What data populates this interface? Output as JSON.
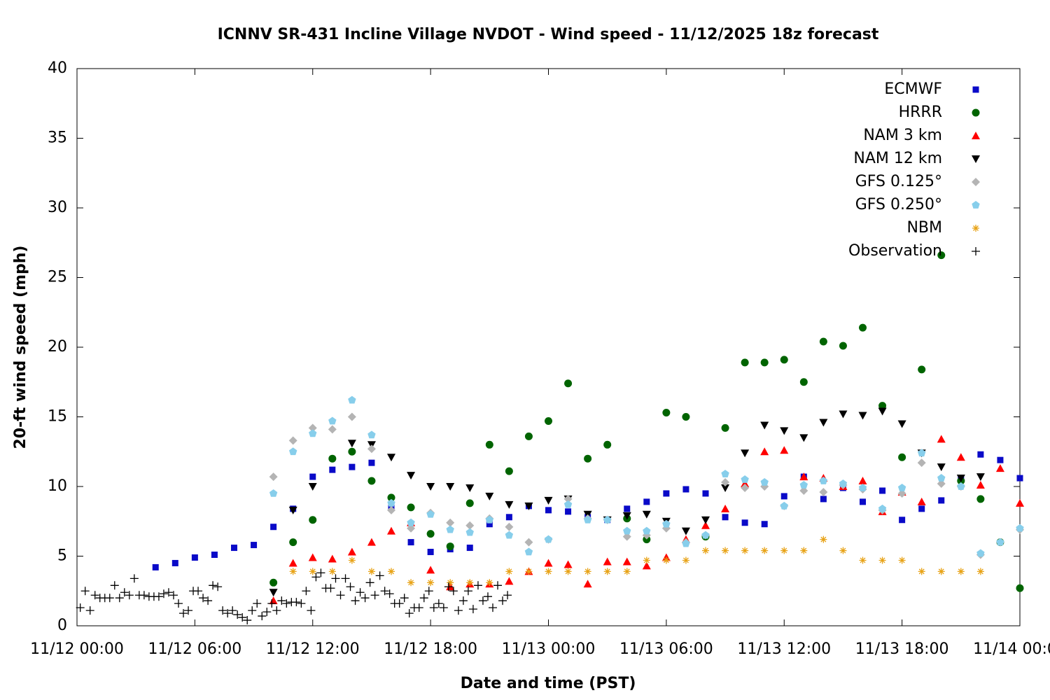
{
  "chart_data": {
    "type": "scatter",
    "title": "ICNNV SR-431 Incline Village NVDOT - Wind speed - 11/12/2025 18z forecast",
    "x_label": "Date and time (PST)",
    "y_label": "20-ft wind speed (mph)",
    "xlim": [
      "11/12 00:00",
      "11/14 00:00"
    ],
    "xticks": [
      "11/12 00:00",
      "11/12 06:00",
      "11/12 12:00",
      "11/12 18:00",
      "11/13 00:00",
      "11/13 06:00",
      "11/13 12:00",
      "11/13 18:00",
      "11/14 00:00"
    ],
    "ylim": [
      0,
      40
    ],
    "yticks": [
      0,
      5,
      10,
      15,
      20,
      25,
      30,
      35,
      40
    ],
    "grid": false,
    "legend": "top-right",
    "series": [
      {
        "name": "ECMWF",
        "color": "#0a0ac8",
        "marker": "square",
        "x": [
          "11/12 04:00",
          "11/12 05:00",
          "11/12 06:00",
          "11/12 07:00",
          "11/12 08:00",
          "11/12 09:00",
          "11/12 10:00",
          "11/12 11:00",
          "11/12 12:00",
          "11/12 13:00",
          "11/12 14:00",
          "11/12 15:00",
          "11/12 16:00",
          "11/12 17:00",
          "11/12 18:00",
          "11/12 19:00",
          "11/12 20:00",
          "11/12 21:00",
          "11/12 22:00",
          "11/12 23:00",
          "11/13 00:00",
          "11/13 01:00",
          "11/13 02:00",
          "11/13 03:00",
          "11/13 04:00",
          "11/13 05:00",
          "11/13 06:00",
          "11/13 07:00",
          "11/13 08:00",
          "11/13 09:00",
          "11/13 10:00",
          "11/13 11:00",
          "11/13 12:00",
          "11/13 13:00",
          "11/13 14:00",
          "11/13 15:00",
          "11/13 16:00",
          "11/13 17:00",
          "11/13 18:00",
          "11/13 19:00",
          "11/13 20:00",
          "11/13 21:00",
          "11/13 22:00",
          "11/13 23:00",
          "11/14 00:00"
        ],
        "values": [
          4.2,
          4.5,
          4.9,
          5.1,
          5.6,
          5.8,
          7.1,
          8.4,
          10.7,
          11.2,
          11.4,
          11.7,
          8.5,
          6.0,
          5.3,
          5.5,
          5.6,
          7.3,
          7.8,
          8.6,
          8.3,
          8.2,
          7.8,
          7.6,
          8.4,
          8.9,
          9.5,
          9.8,
          9.5,
          7.8,
          7.4,
          7.3,
          9.3,
          10.7,
          9.1,
          9.9,
          8.9,
          9.7,
          7.6,
          8.4,
          9.0,
          10.6,
          12.3,
          11.9,
          10.6
        ]
      },
      {
        "name": "HRRR",
        "color": "#006400",
        "marker": "circle",
        "x": [
          "11/12 10:00",
          "11/12 11:00",
          "11/12 12:00",
          "11/12 13:00",
          "11/12 14:00",
          "11/12 15:00",
          "11/12 16:00",
          "11/12 17:00",
          "11/12 18:00",
          "11/12 19:00",
          "11/12 20:00",
          "11/12 21:00",
          "11/12 22:00",
          "11/12 23:00",
          "11/13 00:00",
          "11/13 01:00",
          "11/13 02:00",
          "11/13 03:00",
          "11/13 04:00",
          "11/13 05:00",
          "11/13 06:00",
          "11/13 07:00",
          "11/13 08:00",
          "11/13 09:00",
          "11/13 10:00",
          "11/13 11:00",
          "11/13 12:00",
          "11/13 13:00",
          "11/13 14:00",
          "11/13 15:00",
          "11/13 16:00",
          "11/13 17:00",
          "11/13 18:00",
          "11/13 19:00",
          "11/13 20:00",
          "11/13 21:00",
          "11/13 22:00",
          "11/13 23:00",
          "11/14 00:00"
        ],
        "values": [
          3.1,
          6.0,
          7.6,
          12.0,
          12.5,
          10.4,
          9.2,
          8.5,
          6.6,
          5.7,
          8.8,
          13.0,
          11.1,
          13.6,
          14.7,
          17.4,
          12.0,
          13.0,
          7.7,
          6.2,
          15.3,
          15.0,
          6.4,
          14.2,
          18.9,
          18.9,
          19.1,
          17.5,
          20.4,
          20.1,
          21.4,
          15.8,
          12.1,
          18.4,
          26.6,
          10.4,
          9.1,
          6.0,
          2.7
        ]
      },
      {
        "name": "NAM 3 km",
        "color": "#ff0000",
        "marker": "triangle-up",
        "x": [
          "11/12 10:00",
          "11/12 11:00",
          "11/12 12:00",
          "11/12 13:00",
          "11/12 14:00",
          "11/12 15:00",
          "11/12 16:00",
          "11/12 17:00",
          "11/12 18:00",
          "11/12 19:00",
          "11/12 20:00",
          "11/12 21:00",
          "11/12 22:00",
          "11/12 23:00",
          "11/13 00:00",
          "11/13 01:00",
          "11/13 02:00",
          "11/13 03:00",
          "11/13 04:00",
          "11/13 05:00",
          "11/13 06:00",
          "11/13 07:00",
          "11/13 08:00",
          "11/13 09:00",
          "11/13 10:00",
          "11/13 11:00",
          "11/13 12:00",
          "11/13 13:00",
          "11/13 14:00",
          "11/13 15:00",
          "11/13 16:00",
          "11/13 17:00",
          "11/13 18:00",
          "11/13 19:00",
          "11/13 20:00",
          "11/13 21:00",
          "11/13 22:00",
          "11/13 23:00",
          "11/14 00:00"
        ],
        "values": [
          1.8,
          4.5,
          4.9,
          4.8,
          5.3,
          6.0,
          6.8,
          7.4,
          4.0,
          2.8,
          3.0,
          3.0,
          3.2,
          3.9,
          4.5,
          4.4,
          3.0,
          4.6,
          4.6,
          4.3,
          4.9,
          6.2,
          7.2,
          8.4,
          10.2,
          12.5,
          12.6,
          10.7,
          10.6,
          10.0,
          10.4,
          8.2,
          9.6,
          8.9,
          13.4,
          12.1,
          10.1,
          11.3,
          8.8
        ]
      },
      {
        "name": "NAM 12 km",
        "color": "#000000",
        "marker": "triangle-down",
        "x": [
          "11/12 10:00",
          "11/12 11:00",
          "11/12 12:00",
          "11/12 14:00",
          "11/12 15:00",
          "11/12 16:00",
          "11/12 17:00",
          "11/12 18:00",
          "11/12 19:00",
          "11/12 20:00",
          "11/12 21:00",
          "11/12 22:00",
          "11/12 23:00",
          "11/13 00:00",
          "11/13 01:00",
          "11/13 02:00",
          "11/13 03:00",
          "11/13 04:00",
          "11/13 05:00",
          "11/13 06:00",
          "11/13 07:00",
          "11/13 08:00",
          "11/13 09:00",
          "11/13 10:00",
          "11/13 11:00",
          "11/13 12:00",
          "11/13 13:00",
          "11/13 14:00",
          "11/13 15:00",
          "11/13 16:00",
          "11/13 17:00",
          "11/13 18:00",
          "11/13 19:00",
          "11/13 20:00",
          "11/13 21:00",
          "11/13 22:00"
        ],
        "values": [
          2.4,
          8.3,
          10.0,
          13.1,
          13.0,
          12.1,
          10.8,
          10.0,
          10.0,
          9.9,
          9.3,
          8.7,
          8.6,
          9.0,
          9.1,
          8.0,
          7.6,
          7.9,
          8.0,
          7.5,
          6.8,
          7.6,
          9.9,
          12.4,
          14.4,
          14.0,
          13.5,
          14.6,
          15.2,
          15.1,
          15.4,
          14.5,
          12.4,
          11.4,
          10.6,
          10.7
        ]
      },
      {
        "name": "GFS 0.125°",
        "color": "#b4b4b4",
        "marker": "diamond",
        "x": [
          "11/12 10:00",
          "11/12 11:00",
          "11/12 12:00",
          "11/12 13:00",
          "11/12 14:00",
          "11/12 15:00",
          "11/12 16:00",
          "11/12 17:00",
          "11/12 18:00",
          "11/12 19:00",
          "11/12 20:00",
          "11/12 21:00",
          "11/12 22:00",
          "11/12 23:00",
          "11/13 00:00",
          "11/13 01:00",
          "11/13 02:00",
          "11/13 03:00",
          "11/13 04:00",
          "11/13 05:00",
          "11/13 06:00",
          "11/13 07:00",
          "11/13 08:00",
          "11/13 09:00",
          "11/13 10:00",
          "11/13 11:00",
          "11/13 12:00",
          "11/13 13:00",
          "11/13 14:00",
          "11/13 15:00",
          "11/13 16:00",
          "11/13 17:00",
          "11/13 18:00",
          "11/13 19:00",
          "11/13 20:00",
          "11/13 21:00",
          "11/13 22:00",
          "11/13 23:00",
          "11/14 00:00"
        ],
        "values": [
          10.7,
          13.3,
          14.2,
          14.1,
          15.0,
          12.7,
          8.3,
          7.0,
          8.1,
          7.4,
          7.2,
          7.7,
          7.1,
          6.0,
          6.2,
          9.1,
          7.7,
          7.6,
          6.4,
          6.5,
          7.0,
          6.0,
          6.5,
          10.3,
          9.9,
          10.0,
          8.6,
          9.7,
          9.6,
          10.1,
          9.8,
          8.3,
          9.5,
          11.7,
          10.2,
          10.0,
          5.1,
          6.0,
          6.9
        ]
      },
      {
        "name": "GFS 0.250°",
        "color": "#87ceeb",
        "marker": "pentagon",
        "x": [
          "11/12 10:00",
          "11/12 11:00",
          "11/12 12:00",
          "11/12 13:00",
          "11/12 14:00",
          "11/12 15:00",
          "11/12 16:00",
          "11/12 17:00",
          "11/12 18:00",
          "11/12 19:00",
          "11/12 20:00",
          "11/12 21:00",
          "11/12 22:00",
          "11/12 23:00",
          "11/13 00:00",
          "11/13 01:00",
          "11/13 02:00",
          "11/13 03:00",
          "11/13 04:00",
          "11/13 05:00",
          "11/13 06:00",
          "11/13 07:00",
          "11/13 08:00",
          "11/13 09:00",
          "11/13 10:00",
          "11/13 11:00",
          "11/13 12:00",
          "11/13 13:00",
          "11/13 14:00",
          "11/13 15:00",
          "11/13 16:00",
          "11/13 17:00",
          "11/13 18:00",
          "11/13 19:00",
          "11/13 20:00",
          "11/13 21:00",
          "11/13 22:00",
          "11/13 23:00",
          "11/14 00:00"
        ],
        "values": [
          9.5,
          12.5,
          13.8,
          14.7,
          16.2,
          13.7,
          8.8,
          7.4,
          8.0,
          6.9,
          6.7,
          7.6,
          6.5,
          5.3,
          6.2,
          8.7,
          7.6,
          7.6,
          6.8,
          6.8,
          7.3,
          5.9,
          6.5,
          10.9,
          10.5,
          10.3,
          8.6,
          10.1,
          10.4,
          10.2,
          9.9,
          8.4,
          9.9,
          12.4,
          10.6,
          10.0,
          5.2,
          6.0,
          7.0
        ]
      },
      {
        "name": "NBM",
        "color": "#e8a317",
        "marker": "asterisk",
        "x": [
          "11/12 11:00",
          "11/12 12:00",
          "11/12 13:00",
          "11/12 14:00",
          "11/12 15:00",
          "11/12 16:00",
          "11/12 17:00",
          "11/12 18:00",
          "11/12 19:00",
          "11/12 20:00",
          "11/12 21:00",
          "11/12 22:00",
          "11/12 23:00",
          "11/13 00:00",
          "11/13 01:00",
          "11/13 02:00",
          "11/13 03:00",
          "11/13 04:00",
          "11/13 05:00",
          "11/13 06:00",
          "11/13 07:00",
          "11/13 08:00",
          "11/13 09:00",
          "11/13 10:00",
          "11/13 11:00",
          "11/13 12:00",
          "11/13 13:00",
          "11/13 14:00",
          "11/13 15:00",
          "11/13 16:00",
          "11/13 17:00",
          "11/13 18:00",
          "11/13 19:00",
          "11/13 20:00",
          "11/13 21:00",
          "11/13 22:00"
        ],
        "values": [
          3.9,
          3.9,
          3.9,
          4.7,
          3.9,
          3.9,
          3.1,
          3.1,
          3.1,
          3.1,
          3.1,
          3.9,
          3.9,
          3.9,
          3.9,
          3.9,
          3.9,
          3.9,
          4.7,
          4.7,
          4.7,
          5.4,
          5.4,
          5.4,
          5.4,
          5.4,
          5.4,
          6.2,
          5.4,
          4.7,
          4.7,
          4.7,
          3.9,
          3.9,
          3.9,
          3.9
        ]
      },
      {
        "name": "Observation",
        "color": "#000000",
        "marker": "plus",
        "x": [
          "11/12 00:10",
          "11/12 00:25",
          "11/12 00:40",
          "11/12 00:55",
          "11/12 01:10",
          "11/12 01:25",
          "11/12 01:40",
          "11/12 01:55",
          "11/12 02:10",
          "11/12 02:25",
          "11/12 02:40",
          "11/12 02:55",
          "11/12 03:10",
          "11/12 03:25",
          "11/12 03:40",
          "11/12 03:55",
          "11/12 04:10",
          "11/12 04:25",
          "11/12 04:40",
          "11/12 04:55",
          "11/12 05:10",
          "11/12 05:25",
          "11/12 05:40",
          "11/12 05:55",
          "11/12 06:10",
          "11/12 06:25",
          "11/12 06:40",
          "11/12 06:55",
          "11/12 07:10",
          "11/12 07:25",
          "11/12 07:40",
          "11/12 07:55",
          "11/12 08:10",
          "11/12 08:25",
          "11/12 08:40",
          "11/12 08:55",
          "11/12 09:10",
          "11/12 09:25",
          "11/12 09:40",
          "11/12 09:55",
          "11/12 10:10",
          "11/12 10:25",
          "11/12 10:40",
          "11/12 10:55",
          "11/12 11:10",
          "11/12 11:25",
          "11/12 11:40",
          "11/12 11:55",
          "11/12 12:10",
          "11/12 12:25",
          "11/12 12:40",
          "11/12 12:55",
          "11/12 13:10",
          "11/12 13:25",
          "11/12 13:40",
          "11/12 13:55",
          "11/12 14:10",
          "11/12 14:25",
          "11/12 14:40",
          "11/12 14:55",
          "11/12 15:10",
          "11/12 15:25",
          "11/12 15:40",
          "11/12 15:55",
          "11/12 16:10",
          "11/12 16:25",
          "11/12 16:40",
          "11/12 16:55",
          "11/12 17:10",
          "11/12 17:25",
          "11/12 17:40",
          "11/12 17:55",
          "11/12 18:10",
          "11/12 18:25",
          "11/12 18:40",
          "11/12 18:55",
          "11/12 19:10",
          "11/12 19:25",
          "11/12 19:40",
          "11/12 19:55",
          "11/12 20:10",
          "11/12 20:25",
          "11/12 20:40",
          "11/12 20:55",
          "11/12 21:10",
          "11/12 21:25",
          "11/12 21:40",
          "11/12 21:55"
        ],
        "values": [
          1.3,
          2.5,
          1.1,
          2.2,
          2.0,
          2.0,
          2.0,
          2.9,
          2.0,
          2.4,
          2.2,
          3.4,
          2.2,
          2.2,
          2.1,
          2.1,
          2.1,
          2.3,
          2.4,
          2.2,
          1.6,
          0.9,
          1.1,
          2.5,
          2.5,
          2.0,
          1.8,
          2.9,
          2.8,
          1.1,
          0.9,
          1.1,
          0.8,
          0.6,
          0.4,
          1.1,
          1.6,
          0.7,
          1.0,
          1.6,
          1.1,
          1.8,
          1.6,
          1.7,
          1.7,
          1.6,
          2.5,
          1.1,
          3.5,
          3.8,
          2.7,
          2.7,
          3.4,
          2.2,
          3.4,
          2.8,
          1.8,
          2.4,
          2.0,
          3.1,
          2.2,
          3.6,
          2.5,
          2.3,
          1.6,
          1.6,
          2.0,
          0.9,
          1.3,
          1.3,
          2.0,
          2.5,
          1.3,
          1.6,
          1.3,
          2.8,
          2.5,
          1.1,
          1.8,
          2.5,
          1.2,
          2.9,
          1.8,
          2.1,
          1.3,
          2.9,
          1.8,
          2.2
        ]
      }
    ]
  }
}
